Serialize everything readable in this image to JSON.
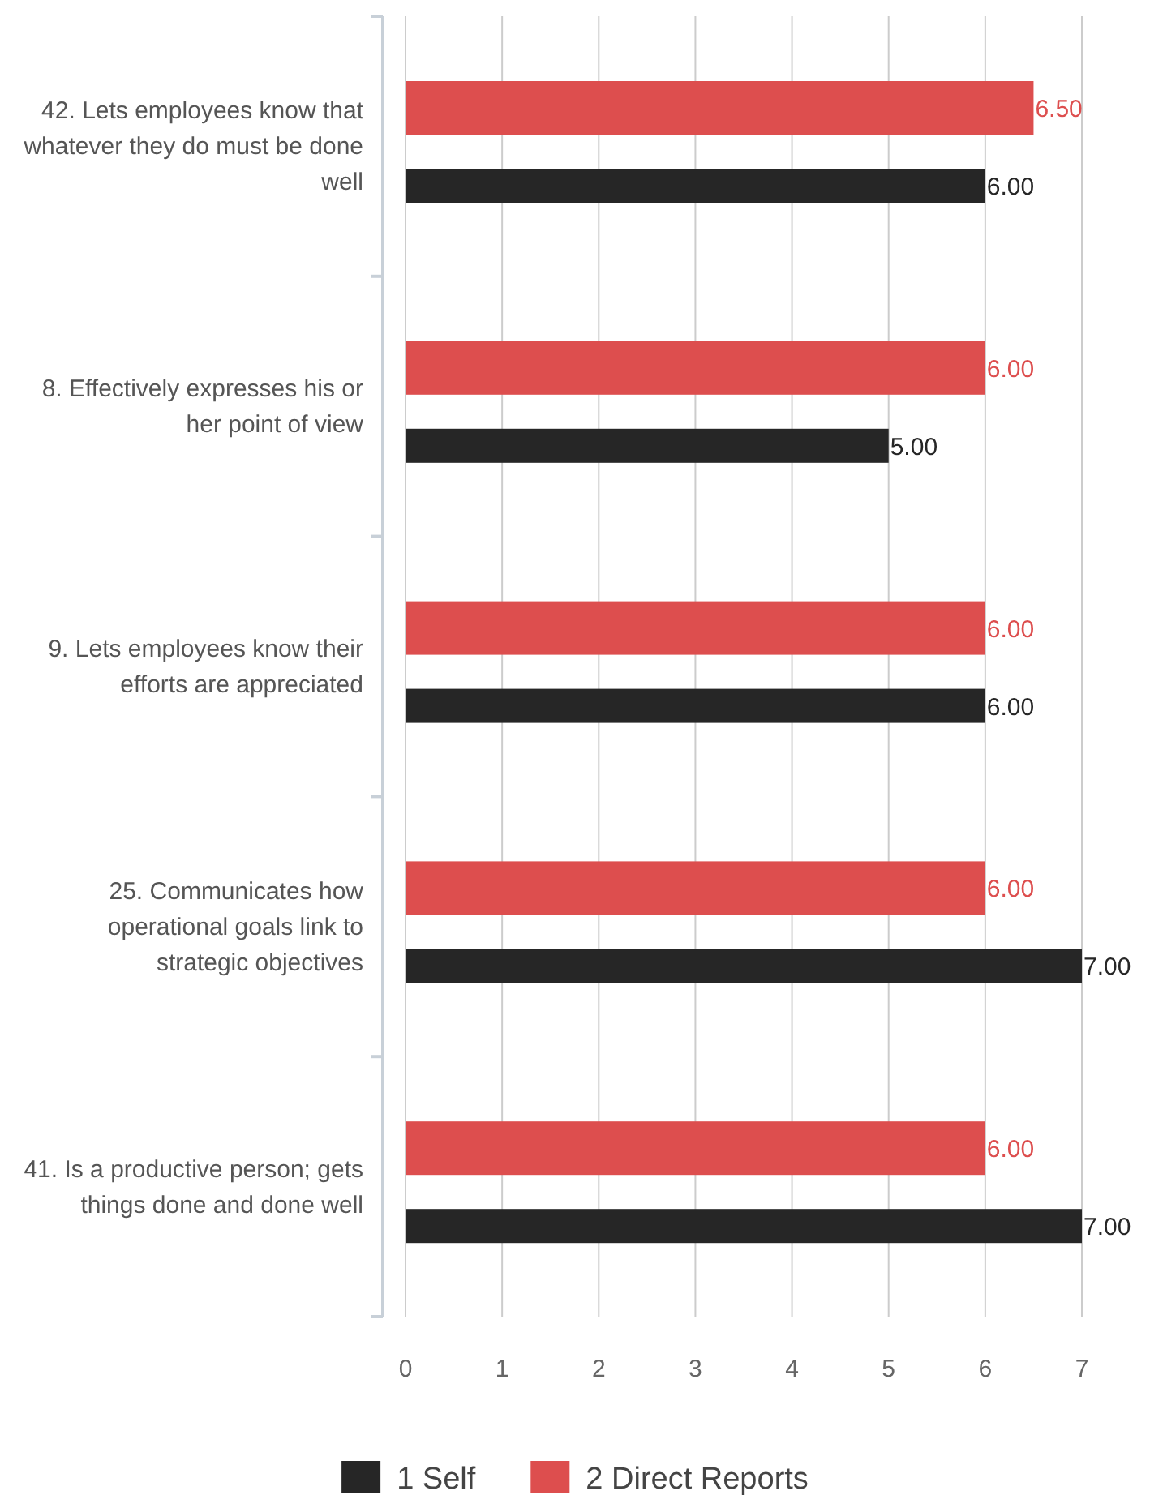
{
  "chart_data": {
    "type": "bar",
    "orientation": "horizontal",
    "categories": [
      "42. Lets employees know that whatever they do must be done well",
      "8. Effectively expresses his or her point of view",
      "9. Lets employees know their efforts are appreciated",
      "25. Communicates how operational goals link to strategic objectives",
      "41. Is a productive person; gets things done and done well"
    ],
    "series": [
      {
        "name": "1 Self",
        "color": "#262626",
        "values": [
          6.0,
          5.0,
          6.0,
          7.0,
          7.0
        ],
        "value_labels": [
          "6.00",
          "5.00",
          "6.00",
          "7.00",
          "7.00"
        ]
      },
      {
        "name": "2 Direct Reports",
        "color": "#dd4e4e",
        "values": [
          6.5,
          6.0,
          6.0,
          6.0,
          6.0
        ],
        "value_labels": [
          "6.50",
          "6.00",
          "6.00",
          "6.00",
          "6.00"
        ]
      }
    ],
    "xlim": [
      0,
      7
    ],
    "xticks": [
      0,
      1,
      2,
      3,
      4,
      5,
      6,
      7
    ],
    "grid": "x",
    "legend": "bottom"
  }
}
